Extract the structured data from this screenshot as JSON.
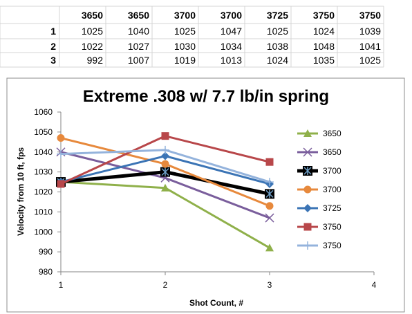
{
  "table": {
    "column_headers": [
      "3650",
      "3650",
      "3700",
      "3700",
      "3725",
      "3750",
      "3750"
    ],
    "rows": [
      {
        "label": "1",
        "values": [
          "1025",
          "1040",
          "1025",
          "1047",
          "1025",
          "1024",
          "1039"
        ]
      },
      {
        "label": "2",
        "values": [
          "1022",
          "1027",
          "1030",
          "1034",
          "1038",
          "1048",
          "1041"
        ]
      },
      {
        "label": "3",
        "values": [
          "992",
          "1007",
          "1019",
          "1013",
          "1024",
          "1035",
          "1025"
        ]
      }
    ]
  },
  "chart_data": {
    "type": "line",
    "title": "Extreme .308 w/ 7.7 lb/in spring",
    "xlabel": "Shot Count, #",
    "ylabel": "Velocity from 10 ft, fps",
    "x": [
      1,
      2,
      3
    ],
    "xlim": [
      1,
      4
    ],
    "ylim": [
      980,
      1060
    ],
    "xticks": [
      1,
      2,
      3,
      4
    ],
    "yticks": [
      980,
      990,
      1000,
      1010,
      1020,
      1030,
      1040,
      1050,
      1060
    ],
    "grid": false,
    "legend_position": "right",
    "series": [
      {
        "name": "3650",
        "values": [
          1025,
          1022,
          992
        ],
        "color": "#8fb04a",
        "marker": "triangle",
        "width": 3
      },
      {
        "name": "3650",
        "values": [
          1040,
          1027,
          1007
        ],
        "color": "#7a5e9c",
        "marker": "x",
        "width": 3
      },
      {
        "name": "3700",
        "values": [
          1025,
          1030,
          1019
        ],
        "color": "#000000",
        "marker": "star-box",
        "width": 5
      },
      {
        "name": "3700",
        "values": [
          1047,
          1034,
          1013
        ],
        "color": "#e7893c",
        "marker": "circle",
        "width": 3
      },
      {
        "name": "3725",
        "values": [
          1025,
          1038,
          1024
        ],
        "color": "#3b74b5",
        "marker": "diamond",
        "width": 3
      },
      {
        "name": "3750",
        "values": [
          1024,
          1048,
          1035
        ],
        "color": "#b8474a",
        "marker": "square",
        "width": 3
      },
      {
        "name": "3750",
        "values": [
          1039,
          1041,
          1025
        ],
        "color": "#94b3dc",
        "marker": "plus",
        "width": 3
      }
    ]
  }
}
